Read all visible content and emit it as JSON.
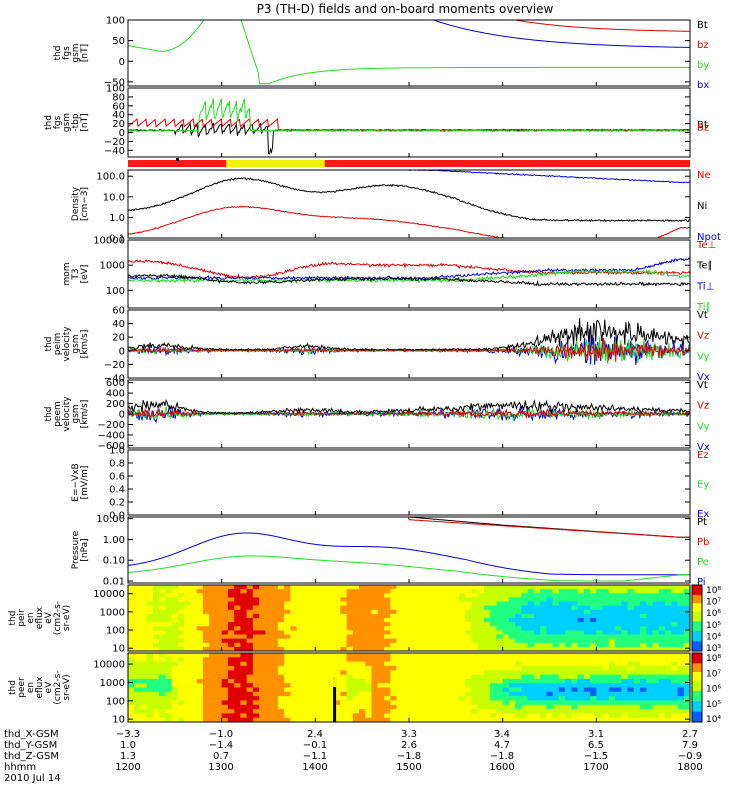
{
  "title": "P3 (TH-D) fields and on-board moments overview",
  "colors": {
    "black": "#000000",
    "red": "#e00000",
    "green": "#22dd22",
    "blue": "#0000dd",
    "yellow": "#f2f200",
    "bar_red": "#ff1a1a"
  },
  "chart_data": [
    {
      "type": "line",
      "id": "fgs",
      "ylabel": [
        "thd",
        "fgs",
        "gsm",
        "[nT]"
      ],
      "ylim": [
        -60,
        100
      ],
      "yticks": [
        "100",
        "50",
        "0",
        "−50"
      ],
      "ytick_values": [
        100,
        50,
        0,
        -50
      ],
      "legend": [
        {
          "label": "Bt",
          "color": "black"
        },
        {
          "label": "bz",
          "color": "red"
        },
        {
          "label": "by",
          "color": "green"
        },
        {
          "label": "bx",
          "color": "blue"
        }
      ]
    },
    {
      "type": "line",
      "id": "fgs_tbp",
      "ylabel": [
        "thd",
        "fgs",
        "gsm",
        "-tbp",
        "[nT]"
      ],
      "ylim": [
        -55,
        100
      ],
      "yticks": [
        "100",
        "80",
        "60",
        "40",
        "20",
        "0",
        "−20",
        "−40"
      ],
      "ytick_values": [
        100,
        80,
        60,
        40,
        20,
        0,
        -20,
        -40
      ],
      "legend": [
        {
          "label": "Bt",
          "color": "black"
        },
        {
          "label": "Bz",
          "color": "red"
        }
      ]
    },
    {
      "type": "bar",
      "id": "mode_bar",
      "segments": [
        {
          "from": 1200,
          "to": 1305,
          "color": "bar_red"
        },
        {
          "from": 1305,
          "to": 1410,
          "color": "yellow"
        },
        {
          "from": 1410,
          "to": 1800,
          "color": "bar_red"
        }
      ]
    },
    {
      "type": "line",
      "id": "density",
      "log": true,
      "ylabel": [
        "Density",
        "[cm−3]"
      ],
      "ylim": [
        0.1,
        200
      ],
      "yticks": [
        "100.0",
        "10.0",
        "1.0",
        "0.1"
      ],
      "ytick_values": [
        100,
        10,
        1,
        0.1
      ],
      "legend": [
        {
          "label": "Ne",
          "color": "red"
        },
        {
          "label": "Ni",
          "color": "black"
        },
        {
          "label": "Npot",
          "color": "blue"
        }
      ]
    },
    {
      "type": "line",
      "id": "temperature",
      "log": true,
      "ylabel": [
        "mom",
        "T3",
        "[eV]"
      ],
      "ylim": [
        20,
        10000
      ],
      "yticks": [
        "10000",
        "1000",
        "100"
      ],
      "ytick_values": [
        10000,
        1000,
        100
      ],
      "legend": [
        {
          "label": "Te⊥",
          "color": "red"
        },
        {
          "label": "Te∥",
          "color": "black"
        },
        {
          "label": "Ti⊥",
          "color": "blue"
        },
        {
          "label": "Ti∥",
          "color": "green"
        }
      ]
    },
    {
      "type": "line",
      "id": "peim_velocity",
      "ylabel": [
        "thd",
        "peim",
        "velocity",
        "gsm",
        "[km/s]"
      ],
      "ylim": [
        -40,
        60
      ],
      "yticks": [
        "60",
        "40",
        "20",
        "0",
        "−20",
        "−40"
      ],
      "ytick_values": [
        60,
        40,
        20,
        0,
        -20,
        -40
      ],
      "legend": [
        {
          "label": "Vt",
          "color": "black"
        },
        {
          "label": "Vz",
          "color": "red"
        },
        {
          "label": "Vy",
          "color": "green"
        },
        {
          "label": "Vx",
          "color": "blue"
        }
      ]
    },
    {
      "type": "line",
      "id": "peem_velocity",
      "ylabel": [
        "thd",
        "peem",
        "velocity",
        "gsm",
        "[km/s]"
      ],
      "ylim": [
        -650,
        650
      ],
      "yticks": [
        "600",
        "400",
        "200",
        "0",
        "−200",
        "−400",
        "−600"
      ],
      "ytick_values": [
        600,
        400,
        200,
        0,
        -200,
        -400,
        -600
      ],
      "legend": [
        {
          "label": "Vt",
          "color": "black"
        },
        {
          "label": "Vz",
          "color": "red"
        },
        {
          "label": "Vy",
          "color": "green"
        },
        {
          "label": "Vx",
          "color": "blue"
        }
      ]
    },
    {
      "type": "line",
      "id": "efield",
      "ylabel": [
        "E=−VxB",
        "[mV/m]"
      ],
      "ylim": [
        0,
        1
      ],
      "yticks": [
        "1.0",
        "0.8",
        "0.6",
        "0.4",
        "0.2",
        "0.0"
      ],
      "ytick_values": [
        1,
        0.8,
        0.6,
        0.4,
        0.2,
        0
      ],
      "legend": [
        {
          "label": "Ez",
          "color": "red"
        },
        {
          "label": "Ey",
          "color": "green"
        },
        {
          "label": "Ex",
          "color": "blue"
        }
      ]
    },
    {
      "type": "line",
      "id": "pressure",
      "log": true,
      "ylabel": [
        "Pressure",
        "[nPa]"
      ],
      "ylim": [
        0.008,
        12
      ],
      "yticks": [
        "10.00",
        "1.00",
        "0.10",
        "0.01"
      ],
      "ytick_values": [
        10,
        1,
        0.1,
        0.01
      ],
      "legend": [
        {
          "label": "Pt",
          "color": "black"
        },
        {
          "label": "Pb",
          "color": "red"
        },
        {
          "label": "Pe",
          "color": "green"
        },
        {
          "label": "Pi",
          "color": "blue"
        }
      ]
    },
    {
      "type": "heatmap",
      "id": "peir_eflux",
      "log": true,
      "ylabel": [
        "thd",
        "peir",
        "en",
        "eflux",
        "eV",
        "(cm2-s-",
        "sr-eV)"
      ],
      "ylim": [
        7,
        30000
      ],
      "yticks": [
        "10000",
        "1000",
        "100",
        "10"
      ],
      "ytick_values": [
        10000,
        1000,
        100,
        10
      ],
      "colorbar": {
        "labels": [
          "10⁸",
          "10⁷",
          "10⁶",
          "10⁵",
          "10⁴",
          "10³"
        ]
      }
    },
    {
      "type": "heatmap",
      "id": "peer_eflux",
      "log": true,
      "ylabel": [
        "thd",
        "peer",
        "en",
        "eflux",
        "eV",
        "(cm2-s-",
        "sr-eV)"
      ],
      "ylim": [
        7,
        40000
      ],
      "yticks": [
        "10000",
        "1000",
        "100",
        "10"
      ],
      "ytick_values": [
        10000,
        1000,
        100,
        10
      ],
      "colorbar": {
        "labels": [
          "10⁸",
          "10⁷",
          "10⁶",
          "10⁵",
          "10⁴"
        ]
      }
    }
  ],
  "x_axis": {
    "rows": [
      {
        "label": "thd_X-GSM",
        "values": [
          "−3.3",
          "−1.0",
          "2.4",
          "3.3",
          "3.4",
          "3.1",
          "2.7"
        ]
      },
      {
        "label": "thd_Y-GSM",
        "values": [
          "1.0",
          "−1.4",
          "−0.1",
          "2.6",
          "4.7",
          "6.5",
          "7.9"
        ]
      },
      {
        "label": "thd_Z-GSM",
        "values": [
          "1.3",
          "0.7",
          "−1.1",
          "−1.8",
          "−1.8",
          "−1.5",
          "−0.9"
        ]
      },
      {
        "label": "hhmm",
        "values": [
          "1200",
          "1300",
          "1400",
          "1500",
          "1600",
          "1700",
          "1800"
        ]
      }
    ],
    "time_range": [
      1200,
      1800
    ],
    "date": "2010 Jul 14"
  }
}
